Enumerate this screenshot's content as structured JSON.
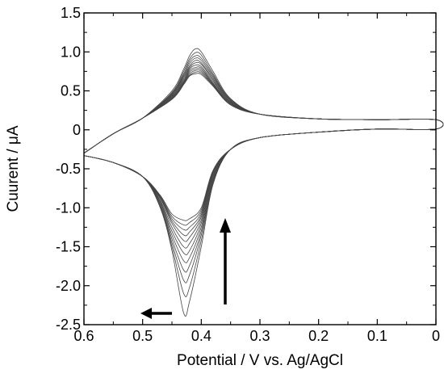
{
  "chart_data": {
    "type": "line",
    "xlabel": "Potential / V vs. Ag/AgCl",
    "ylabel": "Cuurent / μA",
    "xlim": [
      0.6,
      0.0
    ],
    "ylim": [
      -2.5,
      1.5
    ],
    "x_reversed": true,
    "x_ticks": [
      0.6,
      0.5,
      0.4,
      0.3,
      0.2,
      0.1,
      0
    ],
    "x_tick_labels": [
      "0.6",
      "0.5",
      "0.4",
      "0.3",
      "0.2",
      "0.1",
      "0"
    ],
    "y_ticks": [
      1.5,
      1.0,
      0.5,
      0,
      -0.5,
      -1.0,
      -1.5,
      -2.0,
      -2.5
    ],
    "y_tick_labels": [
      "1.5",
      "1.0",
      "0.5",
      "0",
      "-0.5",
      "-1.0",
      "-1.5",
      "-2.0",
      "-2.5"
    ],
    "grid": false,
    "line_color": "#000000",
    "curve_color": "#444444",
    "series": [
      {
        "x": [
          0.6,
          0.55,
          0.5,
          0.45,
          0.43,
          0.42,
          0.41,
          0.4,
          0.38,
          0.35,
          0.3,
          0.2,
          0.1,
          0.0,
          0.0,
          0.1,
          0.2,
          0.3,
          0.35,
          0.38,
          0.4,
          0.42,
          0.43,
          0.45,
          0.47,
          0.5,
          0.55,
          0.6
        ],
        "y": [
          -0.3,
          -0.05,
          0.15,
          0.5,
          0.78,
          0.95,
          1.04,
          1.0,
          0.75,
          0.4,
          0.2,
          0.14,
          0.13,
          0.13,
          0.01,
          0.01,
          -0.03,
          -0.1,
          -0.25,
          -0.7,
          -1.5,
          -2.2,
          -2.35,
          -1.55,
          -1.0,
          -0.6,
          -0.42,
          -0.33
        ]
      },
      {
        "x": [
          0.6,
          0.55,
          0.5,
          0.45,
          0.43,
          0.42,
          0.41,
          0.4,
          0.38,
          0.35,
          0.3,
          0.2,
          0.1,
          0.0,
          0.0,
          0.1,
          0.2,
          0.3,
          0.35,
          0.38,
          0.4,
          0.42,
          0.43,
          0.45,
          0.47,
          0.5,
          0.55,
          0.6
        ],
        "y": [
          -0.3,
          -0.05,
          0.15,
          0.48,
          0.75,
          0.91,
          0.99,
          0.96,
          0.72,
          0.39,
          0.2,
          0.14,
          0.13,
          0.13,
          0.01,
          0.01,
          -0.03,
          -0.1,
          -0.25,
          -0.68,
          -1.42,
          -2.02,
          -2.1,
          -1.5,
          -0.98,
          -0.6,
          -0.42,
          -0.33
        ]
      },
      {
        "x": [
          0.6,
          0.55,
          0.5,
          0.45,
          0.43,
          0.42,
          0.41,
          0.4,
          0.38,
          0.35,
          0.3,
          0.2,
          0.1,
          0.0,
          0.0,
          0.1,
          0.2,
          0.3,
          0.35,
          0.38,
          0.4,
          0.42,
          0.43,
          0.45,
          0.47,
          0.5,
          0.55,
          0.6
        ],
        "y": [
          -0.3,
          -0.05,
          0.15,
          0.47,
          0.72,
          0.88,
          0.95,
          0.92,
          0.7,
          0.38,
          0.2,
          0.14,
          0.13,
          0.13,
          0.01,
          0.01,
          -0.03,
          -0.1,
          -0.25,
          -0.66,
          -1.35,
          -1.86,
          -1.93,
          -1.45,
          -0.97,
          -0.6,
          -0.42,
          -0.33
        ]
      },
      {
        "x": [
          0.6,
          0.55,
          0.5,
          0.45,
          0.43,
          0.42,
          0.41,
          0.4,
          0.38,
          0.35,
          0.3,
          0.2,
          0.1,
          0.0,
          0.0,
          0.1,
          0.2,
          0.3,
          0.35,
          0.38,
          0.4,
          0.42,
          0.43,
          0.45,
          0.47,
          0.5,
          0.55,
          0.6
        ],
        "y": [
          -0.3,
          -0.05,
          0.15,
          0.46,
          0.7,
          0.85,
          0.92,
          0.89,
          0.68,
          0.37,
          0.2,
          0.14,
          0.13,
          0.13,
          0.01,
          0.01,
          -0.03,
          -0.1,
          -0.25,
          -0.64,
          -1.3,
          -1.74,
          -1.8,
          -1.4,
          -0.95,
          -0.6,
          -0.42,
          -0.33
        ]
      },
      {
        "x": [
          0.6,
          0.55,
          0.5,
          0.45,
          0.43,
          0.42,
          0.41,
          0.4,
          0.38,
          0.35,
          0.3,
          0.2,
          0.1,
          0.0,
          0.0,
          0.1,
          0.2,
          0.3,
          0.35,
          0.38,
          0.4,
          0.42,
          0.43,
          0.45,
          0.47,
          0.5,
          0.55,
          0.6
        ],
        "y": [
          -0.3,
          -0.05,
          0.15,
          0.45,
          0.68,
          0.82,
          0.89,
          0.86,
          0.66,
          0.36,
          0.2,
          0.14,
          0.13,
          0.13,
          0.01,
          0.01,
          -0.03,
          -0.1,
          -0.25,
          -0.62,
          -1.25,
          -1.64,
          -1.68,
          -1.35,
          -0.93,
          -0.6,
          -0.42,
          -0.33
        ]
      },
      {
        "x": [
          0.6,
          0.55,
          0.5,
          0.45,
          0.43,
          0.42,
          0.41,
          0.4,
          0.38,
          0.35,
          0.3,
          0.2,
          0.1,
          0.0,
          0.0,
          0.1,
          0.2,
          0.3,
          0.35,
          0.38,
          0.4,
          0.42,
          0.43,
          0.45,
          0.47,
          0.5,
          0.55,
          0.6
        ],
        "y": [
          -0.3,
          -0.05,
          0.15,
          0.44,
          0.66,
          0.8,
          0.86,
          0.84,
          0.64,
          0.35,
          0.2,
          0.14,
          0.13,
          0.13,
          0.01,
          0.01,
          -0.03,
          -0.1,
          -0.25,
          -0.6,
          -1.2,
          -1.55,
          -1.58,
          -1.3,
          -0.92,
          -0.6,
          -0.42,
          -0.33
        ]
      },
      {
        "x": [
          0.6,
          0.55,
          0.5,
          0.45,
          0.43,
          0.42,
          0.41,
          0.4,
          0.38,
          0.35,
          0.3,
          0.2,
          0.1,
          0.0,
          0.0,
          0.1,
          0.2,
          0.3,
          0.35,
          0.38,
          0.4,
          0.42,
          0.43,
          0.45,
          0.47,
          0.5,
          0.55,
          0.6
        ],
        "y": [
          -0.3,
          -0.05,
          0.15,
          0.43,
          0.64,
          0.78,
          0.83,
          0.81,
          0.62,
          0.35,
          0.2,
          0.14,
          0.13,
          0.13,
          0.01,
          0.01,
          -0.03,
          -0.1,
          -0.25,
          -0.58,
          -1.16,
          -1.46,
          -1.5,
          -1.25,
          -0.9,
          -0.6,
          -0.42,
          -0.33
        ]
      },
      {
        "x": [
          0.6,
          0.55,
          0.5,
          0.45,
          0.43,
          0.42,
          0.41,
          0.4,
          0.38,
          0.35,
          0.3,
          0.2,
          0.1,
          0.0,
          0.0,
          0.1,
          0.2,
          0.3,
          0.35,
          0.38,
          0.4,
          0.42,
          0.43,
          0.45,
          0.47,
          0.5,
          0.55,
          0.6
        ],
        "y": [
          -0.3,
          -0.05,
          0.15,
          0.42,
          0.62,
          0.76,
          0.8,
          0.79,
          0.6,
          0.34,
          0.2,
          0.14,
          0.13,
          0.13,
          0.01,
          0.01,
          -0.03,
          -0.1,
          -0.25,
          -0.56,
          -1.12,
          -1.38,
          -1.42,
          -1.2,
          -0.88,
          -0.6,
          -0.42,
          -0.33
        ]
      },
      {
        "x": [
          0.6,
          0.55,
          0.5,
          0.45,
          0.43,
          0.42,
          0.41,
          0.4,
          0.38,
          0.35,
          0.3,
          0.2,
          0.1,
          0.0,
          0.0,
          0.1,
          0.2,
          0.3,
          0.35,
          0.38,
          0.4,
          0.42,
          0.43,
          0.45,
          0.47,
          0.5,
          0.55,
          0.6
        ],
        "y": [
          -0.3,
          -0.05,
          0.15,
          0.41,
          0.61,
          0.74,
          0.78,
          0.77,
          0.59,
          0.33,
          0.2,
          0.14,
          0.13,
          0.13,
          0.01,
          0.01,
          -0.03,
          -0.1,
          -0.25,
          -0.55,
          -1.09,
          -1.31,
          -1.35,
          -1.17,
          -0.87,
          -0.6,
          -0.42,
          -0.33
        ]
      },
      {
        "x": [
          0.6,
          0.55,
          0.5,
          0.45,
          0.43,
          0.42,
          0.41,
          0.4,
          0.38,
          0.35,
          0.3,
          0.2,
          0.1,
          0.0,
          0.0,
          0.1,
          0.2,
          0.3,
          0.35,
          0.38,
          0.4,
          0.42,
          0.43,
          0.45,
          0.47,
          0.5,
          0.55,
          0.6
        ],
        "y": [
          -0.3,
          -0.05,
          0.15,
          0.4,
          0.6,
          0.72,
          0.76,
          0.75,
          0.58,
          0.33,
          0.2,
          0.14,
          0.13,
          0.13,
          0.01,
          0.01,
          -0.03,
          -0.1,
          -0.25,
          -0.54,
          -1.06,
          -1.25,
          -1.28,
          -1.14,
          -0.86,
          -0.6,
          -0.42,
          -0.33
        ]
      },
      {
        "x": [
          0.6,
          0.55,
          0.5,
          0.45,
          0.43,
          0.42,
          0.41,
          0.4,
          0.38,
          0.35,
          0.3,
          0.2,
          0.1,
          0.0,
          0.0,
          0.1,
          0.2,
          0.3,
          0.35,
          0.38,
          0.4,
          0.42,
          0.43,
          0.45,
          0.47,
          0.5,
          0.55,
          0.6
        ],
        "y": [
          -0.3,
          -0.05,
          0.15,
          0.4,
          0.59,
          0.7,
          0.74,
          0.73,
          0.57,
          0.32,
          0.2,
          0.14,
          0.13,
          0.13,
          0.01,
          0.01,
          -0.03,
          -0.1,
          -0.25,
          -0.53,
          -1.03,
          -1.19,
          -1.22,
          -1.11,
          -0.85,
          -0.6,
          -0.42,
          -0.33
        ]
      },
      {
        "x": [
          0.6,
          0.55,
          0.5,
          0.45,
          0.43,
          0.42,
          0.41,
          0.4,
          0.38,
          0.35,
          0.3,
          0.2,
          0.1,
          0.0,
          0.0,
          0.1,
          0.2,
          0.3,
          0.35,
          0.38,
          0.4,
          0.42,
          0.43,
          0.45,
          0.47,
          0.5,
          0.55,
          0.6
        ],
        "y": [
          -0.3,
          -0.05,
          0.15,
          0.39,
          0.58,
          0.69,
          0.72,
          0.71,
          0.56,
          0.32,
          0.2,
          0.14,
          0.13,
          0.13,
          0.01,
          0.01,
          -0.03,
          -0.1,
          -0.25,
          -0.52,
          -1.0,
          -1.14,
          -1.16,
          -1.08,
          -0.84,
          -0.6,
          -0.42,
          -0.33
        ]
      }
    ]
  }
}
